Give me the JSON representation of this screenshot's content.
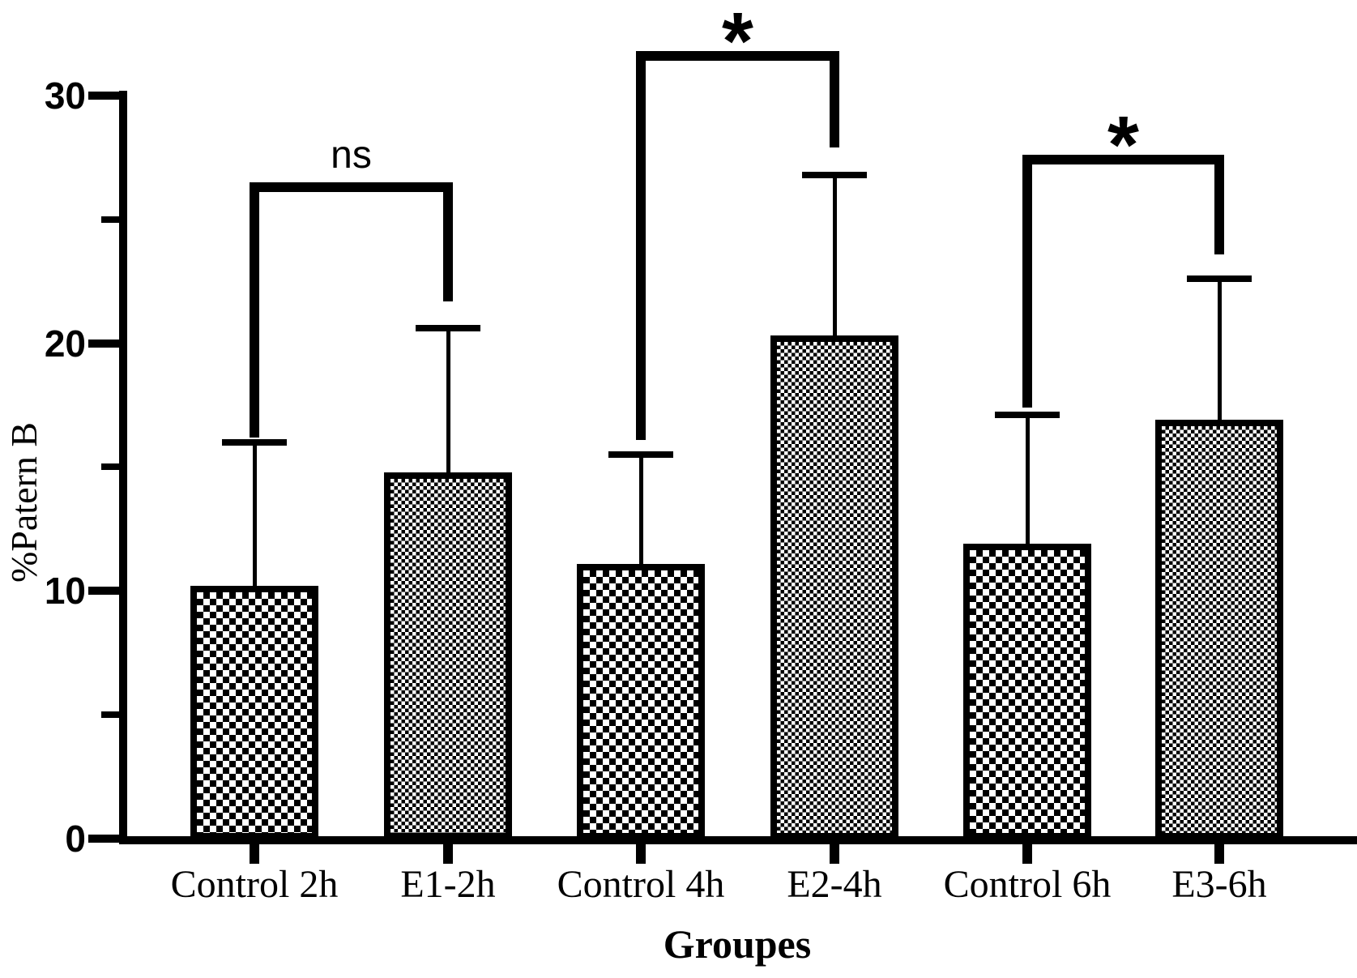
{
  "colors": {
    "ink": "#000000",
    "background": "#ffffff"
  },
  "chart_data": {
    "type": "bar",
    "title": "",
    "xlabel": "Groupes",
    "ylabel": "%Patern B",
    "categories": [
      "Control 2h",
      "E1-2h",
      "Control 4h",
      "E2-4h",
      "Control 6h",
      "E3-6h"
    ],
    "values": [
      10.2,
      14.8,
      11.1,
      20.3,
      11.9,
      16.9
    ],
    "errors_upper": [
      5.8,
      5.8,
      4.4,
      6.5,
      5.2,
      5.7
    ],
    "bar_patterns": [
      "coarse",
      "fine",
      "coarse",
      "fine",
      "coarse",
      "fine"
    ],
    "ylim": [
      0,
      30
    ],
    "yticks": [
      0,
      10,
      20,
      30
    ],
    "yticks_minor": [
      5,
      15,
      25
    ],
    "grid": false,
    "legend": null,
    "annotations": [
      {
        "label": "ns",
        "pair": [
          0,
          1
        ],
        "bracket_y": 26.5,
        "left_drop_to": 16.2,
        "right_drop_to": 21.7
      },
      {
        "label": "*",
        "pair": [
          2,
          3
        ],
        "bracket_y": 31.8,
        "left_drop_to": 16.1,
        "right_drop_to": 27.9
      },
      {
        "label": "*",
        "pair": [
          4,
          5
        ],
        "bracket_y": 27.6,
        "left_drop_to": 17.4,
        "right_drop_to": 23.6
      }
    ]
  }
}
